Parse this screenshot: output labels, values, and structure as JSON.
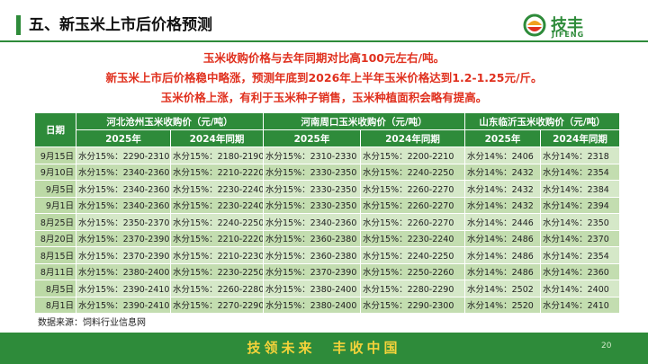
{
  "header": {
    "title": "五、新玉米上市后价格预测",
    "logo_cn": "技丰",
    "logo_en": "JIFENG"
  },
  "notes": [
    "玉米收购价格与去年同期对比高100元左右/吨。",
    "新玉米上市后价格稳中略涨，预测年底到2026年上半年玉米价格达到1.2-1.25元/斤。",
    "玉米价格上涨，有利于玉米种子销售，玉米种植面积会略有提高。"
  ],
  "table": {
    "date_header": "日期",
    "groups": [
      "河北沧州玉米收购价（元/吨）",
      "河南周口玉米收购价（元/吨）",
      "山东临沂玉米收购价（元/吨）"
    ],
    "subheaders": [
      "2025年",
      "2024年同期",
      "2025年",
      "2024年同期",
      "2025年",
      "2024年同期"
    ],
    "rows": [
      [
        "9月15日",
        "水分15%：2290-2310",
        "水分15%：2180-2190",
        "水分15%：2310-2330",
        "水分15%：2200-2210",
        "水分14%：2406",
        "水分14%：2318"
      ],
      [
        "9月10日",
        "水分15%：2340-2360",
        "水分15%：2210-2220",
        "水分15%：2330-2350",
        "水分15%：2240-2250",
        "水分14%：2432",
        "水分14%：2354"
      ],
      [
        "9月5日",
        "水分15%：2340-2360",
        "水分15%：2230-2240",
        "水分15%：2330-2350",
        "水分15%：2260-2270",
        "水分14%：2432",
        "水分14%：2384"
      ],
      [
        "9月1日",
        "水分15%：2340-2360",
        "水分15%：2230-2240",
        "水分15%：2330-2350",
        "水分15%：2260-2270",
        "水分14%：2432",
        "水分14%：2394"
      ],
      [
        "8月25日",
        "水分15%：2350-2370",
        "水分15%：2240-2250",
        "水分15%：2340-2360",
        "水分15%：2260-2270",
        "水分14%：2446",
        "水分14%：2350"
      ],
      [
        "8月20日",
        "水分15%：2370-2390",
        "水分15%：2210-2220",
        "水分15%：2360-2380",
        "水分15%：2230-2240",
        "水分14%：2486",
        "水分14%：2370"
      ],
      [
        "8月15日",
        "水分15%：2370-2390",
        "水分15%：2210-2230",
        "水分15%：2360-2380",
        "水分15%：2240-2250",
        "水分14%：2486",
        "水分14%：2354"
      ],
      [
        "8月11日",
        "水分15%：2380-2400",
        "水分15%：2230-2250",
        "水分15%：2370-2390",
        "水分15%：2250-2260",
        "水分14%：2486",
        "水分14%：2360"
      ],
      [
        "8月5日",
        "水分15%：2390-2410",
        "水分15%：2260-2280",
        "水分15%：2380-2400",
        "水分15%：2280-2290",
        "水分14%：2502",
        "水分14%：2400"
      ],
      [
        "8月1日",
        "水分15%：2390-2410",
        "水分15%：2270-2290",
        "水分15%：2380-2400",
        "水分15%：2290-2300",
        "水分14%：2520",
        "水分14%：2410"
      ]
    ]
  },
  "source": "数据来源：饲料行业信息网",
  "footer": {
    "slogan": "技领未来　丰收中国",
    "page": "20"
  }
}
